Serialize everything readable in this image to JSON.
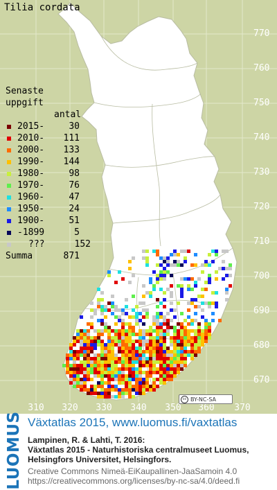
{
  "map": {
    "title": "Tilia cordata",
    "y_axis_labels": [
      "770",
      "760",
      "750",
      "740",
      "730",
      "720",
      "710",
      "700",
      "690",
      "680",
      "670"
    ],
    "x_axis_labels": [
      "310",
      "320",
      "330",
      "340",
      "350",
      "360",
      "370"
    ],
    "colors": {
      "land": "#ffffff",
      "background": "#cdd5a5",
      "grid": "#e4e9cc",
      "borders": "#b8bca2"
    }
  },
  "legend": {
    "title_line1": "Senaste",
    "title_line2": "uppgift",
    "count_header": "antal",
    "items": [
      {
        "label": "2015-",
        "count": "30",
        "color": "#7a0000"
      },
      {
        "label": "2010-",
        "count": "111",
        "color": "#e10000"
      },
      {
        "label": "2000-",
        "count": "133",
        "color": "#ff6a00"
      },
      {
        "label": "1990-",
        "count": "144",
        "color": "#ffc000"
      },
      {
        "label": "1980-",
        "count": "98",
        "color": "#c8f03c"
      },
      {
        "label": "1970-",
        "count": "76",
        "color": "#5fef4c"
      },
      {
        "label": "1960-",
        "count": "47",
        "color": "#1ee0e0"
      },
      {
        "label": "1950-",
        "count": "24",
        "color": "#1e8cff"
      },
      {
        "label": "1900-",
        "count": "51",
        "color": "#1a1ae6"
      },
      {
        "label": "-1899",
        "count": "5",
        "color": "#08085a"
      },
      {
        "label": "???",
        "count": "152",
        "color": "#c8c8c8"
      }
    ],
    "summa_label": "Summa",
    "summa_count": "871"
  },
  "license_badge": {
    "label": "BY-NC-SA",
    "logo": "cc"
  },
  "footer": {
    "brand": "LUOMUS",
    "atlas_link": "Växtatlas 2015, www.luomus.fi/vaxtatlas",
    "citation_line1": "Lampinen, R. & Lahti, T. 2016:",
    "citation_line2": "Växtatlas 2015 - Naturhistoriska centralmuseet Luomus,",
    "citation_line3": "Helsingfors Universitet, Helsingfors.",
    "license_line1": "Creative Commons Nimeä-EiKaupallinen-JaaSamoin 4.0",
    "license_line2": "https://creativecommons.org/licenses/by-nc-sa/4.0/deed.fi"
  }
}
